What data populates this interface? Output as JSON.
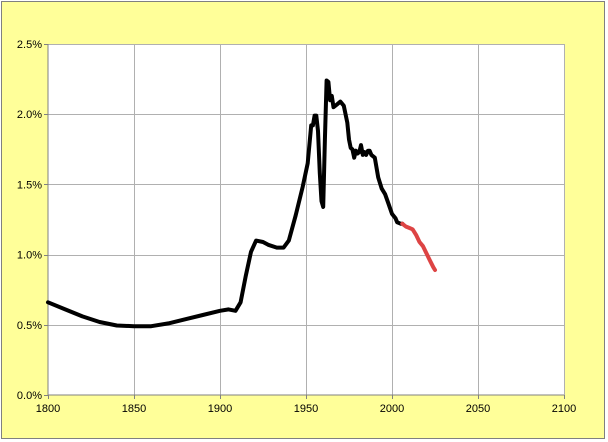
{
  "colors": {
    "chart_area_background": "#ffff99",
    "plot_background": "#ffffff",
    "gridline": "#b0b0b0",
    "axis": "#808080",
    "historical_series": "#000000",
    "projected_series": "#dd4444"
  },
  "chart_data": {
    "type": "line",
    "title": "",
    "xlabel": "",
    "ylabel": "",
    "xlim": [
      1800,
      2100
    ],
    "ylim": [
      0,
      0.025
    ],
    "grid": true,
    "legend": "none",
    "x_ticks": [
      1800,
      1850,
      1900,
      1950,
      2000,
      2050,
      2100
    ],
    "x_tick_labels": [
      "1800",
      "1850",
      "1900",
      "1950",
      "2000",
      "2050",
      "2100"
    ],
    "y_ticks": [
      0,
      0.005,
      0.01,
      0.015,
      0.02,
      0.025
    ],
    "y_tick_labels": [
      "0.0%",
      "0.5%",
      "1.0%",
      "1.5%",
      "2.0%",
      "2.5%"
    ],
    "series": [
      {
        "color": "#000000",
        "points": [
          [
            1800,
            0.0066
          ],
          [
            1810,
            0.0061
          ],
          [
            1820,
            0.0056
          ],
          [
            1830,
            0.0052
          ],
          [
            1840,
            0.00495
          ],
          [
            1850,
            0.0049
          ],
          [
            1860,
            0.0049
          ],
          [
            1870,
            0.0051
          ],
          [
            1880,
            0.0054
          ],
          [
            1890,
            0.0057
          ],
          [
            1900,
            0.006
          ],
          [
            1905,
            0.0061
          ],
          [
            1909,
            0.006
          ],
          [
            1912,
            0.0066
          ],
          [
            1915,
            0.0085
          ],
          [
            1918,
            0.0102
          ],
          [
            1921,
            0.011
          ],
          [
            1925,
            0.0109
          ],
          [
            1928,
            0.0107
          ],
          [
            1933,
            0.0105
          ],
          [
            1937,
            0.0105
          ],
          [
            1940,
            0.011
          ],
          [
            1944,
            0.0128
          ],
          [
            1948,
            0.0148
          ],
          [
            1951,
            0.0165
          ],
          [
            1953,
            0.0192
          ],
          [
            1954,
            0.0192
          ],
          [
            1955,
            0.0199
          ],
          [
            1956,
            0.0199
          ],
          [
            1957,
            0.0188
          ],
          [
            1958,
            0.0158
          ],
          [
            1959,
            0.0138
          ],
          [
            1960,
            0.0134
          ],
          [
            1961,
            0.0182
          ],
          [
            1962,
            0.0224
          ],
          [
            1963,
            0.0223
          ],
          [
            1964,
            0.021
          ],
          [
            1965,
            0.0213
          ],
          [
            1966,
            0.0205
          ],
          [
            1968,
            0.0207
          ],
          [
            1970,
            0.0209
          ],
          [
            1972,
            0.0206
          ],
          [
            1974,
            0.0194
          ],
          [
            1975,
            0.0182
          ],
          [
            1976,
            0.0176
          ],
          [
            1977,
            0.0175
          ],
          [
            1978,
            0.0169
          ],
          [
            1979,
            0.0174
          ],
          [
            1980,
            0.0172
          ],
          [
            1981,
            0.0173
          ],
          [
            1982,
            0.0178
          ],
          [
            1983,
            0.0171
          ],
          [
            1984,
            0.0173
          ],
          [
            1985,
            0.0171
          ],
          [
            1986,
            0.0174
          ],
          [
            1987,
            0.0174
          ],
          [
            1988,
            0.0171
          ],
          [
            1990,
            0.0169
          ],
          [
            1992,
            0.0155
          ],
          [
            1994,
            0.0147
          ],
          [
            1996,
            0.0143
          ],
          [
            1998,
            0.0136
          ],
          [
            2000,
            0.0129
          ],
          [
            2002,
            0.0126
          ],
          [
            2003,
            0.0123
          ],
          [
            2005,
            0.0122
          ],
          [
            2006,
            0.0122
          ]
        ]
      },
      {
        "color": "#dd4444",
        "points": [
          [
            2006,
            0.0122
          ],
          [
            2008,
            0.012
          ],
          [
            2010,
            0.0119
          ],
          [
            2012,
            0.0118
          ],
          [
            2014,
            0.0114
          ],
          [
            2016,
            0.0109
          ],
          [
            2018,
            0.0106
          ],
          [
            2020,
            0.0101
          ],
          [
            2022,
            0.0096
          ],
          [
            2024,
            0.0091
          ],
          [
            2025,
            0.0089
          ]
        ]
      }
    ]
  }
}
